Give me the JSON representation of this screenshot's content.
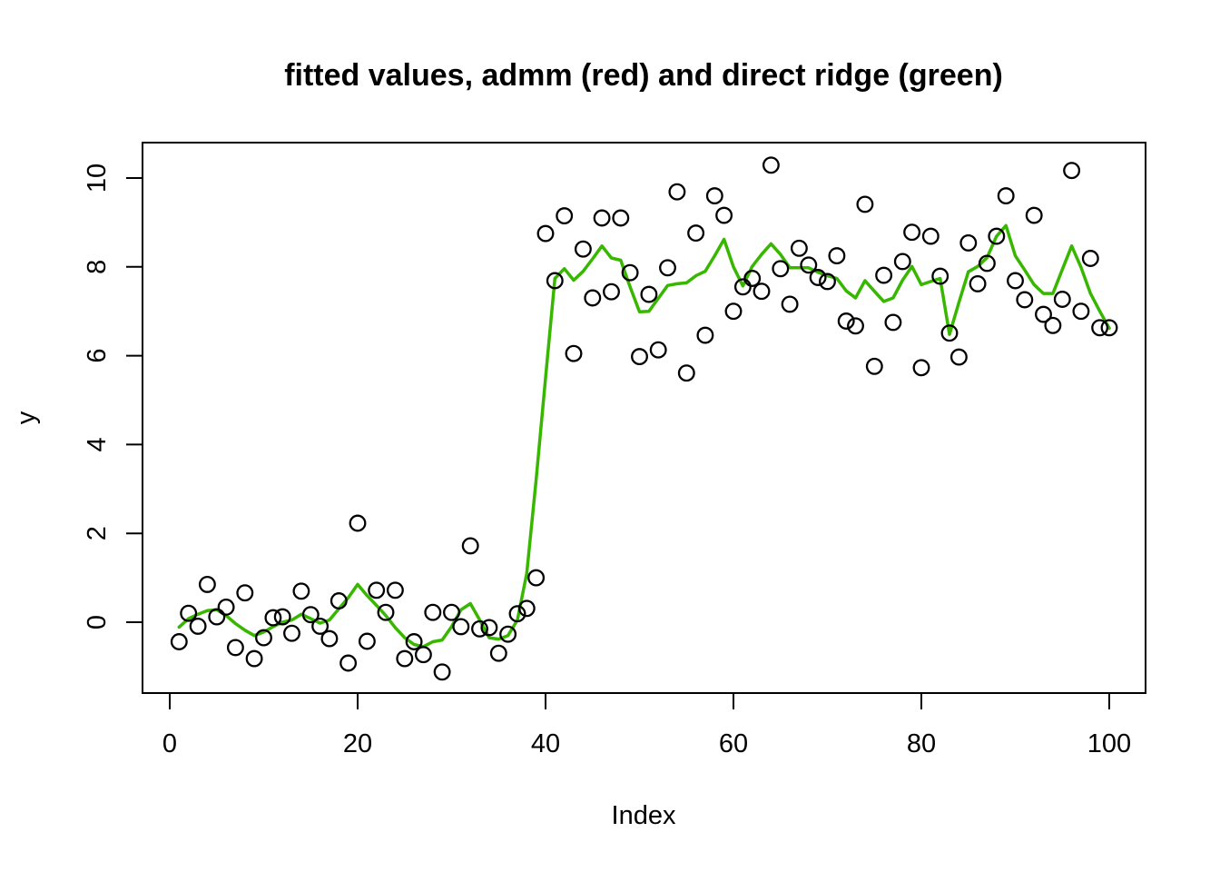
{
  "colors": {
    "background": "#FFFFFF",
    "ridge_line_green": "#38B700",
    "point_stroke": "#000000",
    "axis_black": "#000000"
  },
  "chart_data": {
    "type": "scatter",
    "title": "fitted values, admm (red) and direct ridge (green)",
    "xlabel": "Index",
    "ylabel": "y",
    "xlim": [
      -3,
      104
    ],
    "ylim": [
      -1.6,
      10.8
    ],
    "x_ticks": [
      0,
      20,
      40,
      60,
      80,
      100
    ],
    "y_ticks": [
      0,
      2,
      4,
      6,
      8,
      10
    ],
    "grid": false,
    "legend": "none (series identified by colors in title)",
    "note": "The admm (red) fitted line is not visible in the image; it is completely overplotted by the green direct-ridge fitted line.",
    "x": [
      1,
      2,
      3,
      4,
      5,
      6,
      7,
      8,
      9,
      10,
      11,
      12,
      13,
      14,
      15,
      16,
      17,
      18,
      19,
      20,
      21,
      22,
      23,
      24,
      25,
      26,
      27,
      28,
      29,
      30,
      31,
      32,
      33,
      34,
      35,
      36,
      37,
      38,
      39,
      40,
      41,
      42,
      43,
      44,
      45,
      46,
      47,
      48,
      49,
      50,
      51,
      52,
      53,
      54,
      55,
      56,
      57,
      58,
      59,
      60,
      61,
      62,
      63,
      64,
      65,
      66,
      67,
      68,
      69,
      70,
      71,
      72,
      73,
      74,
      75,
      76,
      77,
      78,
      79,
      80,
      81,
      82,
      83,
      84,
      85,
      86,
      87,
      88,
      89,
      90,
      91,
      92,
      93,
      94,
      95,
      96,
      97,
      98,
      99,
      100
    ],
    "series": [
      {
        "name": "y observations (open circles)",
        "type": "scatter",
        "values": [
          -0.44,
          0.2,
          -0.09,
          0.85,
          0.12,
          0.34,
          -0.57,
          0.66,
          -0.82,
          -0.35,
          0.1,
          0.12,
          -0.25,
          0.7,
          0.17,
          -0.09,
          -0.37,
          0.48,
          -0.92,
          2.23,
          -0.43,
          0.72,
          0.22,
          0.72,
          -0.82,
          -0.44,
          -0.73,
          0.22,
          -1.12,
          0.22,
          -0.1,
          1.72,
          -0.15,
          -0.12,
          -0.7,
          -0.27,
          0.19,
          0.31,
          1.0,
          8.75,
          7.69,
          9.15,
          6.05,
          8.4,
          7.3,
          9.1,
          7.44,
          9.1,
          7.87,
          5.98,
          7.38,
          6.13,
          7.98,
          9.69,
          5.61,
          8.76,
          6.46,
          9.6,
          9.16,
          7.0,
          7.55,
          7.74,
          7.45,
          10.29,
          7.96,
          7.16,
          8.42,
          8.04,
          7.76,
          7.67,
          8.25,
          6.78,
          6.67,
          9.41,
          5.76,
          7.81,
          6.75,
          8.12,
          8.78,
          5.73,
          8.69,
          7.79,
          6.51,
          5.97,
          8.54,
          7.62,
          8.08,
          8.69,
          9.6,
          7.69,
          7.26,
          9.16,
          6.93,
          6.68,
          7.27,
          10.17,
          7.0,
          8.19,
          6.63,
          6.63
        ]
      },
      {
        "name": "direct ridge fitted values (green line, admm red line hidden beneath)",
        "type": "line",
        "color": "#38B700",
        "values": [
          -0.11,
          0.08,
          0.18,
          0.26,
          0.28,
          0.15,
          -0.03,
          -0.18,
          -0.3,
          -0.22,
          -0.1,
          0.0,
          0.05,
          0.18,
          0.08,
          -0.02,
          0.05,
          0.3,
          0.55,
          0.85,
          0.6,
          0.38,
          0.15,
          -0.12,
          -0.35,
          -0.5,
          -0.55,
          -0.44,
          -0.4,
          -0.1,
          0.28,
          0.42,
          0.05,
          -0.35,
          -0.38,
          -0.3,
          0.05,
          1.1,
          3.2,
          5.5,
          7.74,
          7.96,
          7.7,
          7.9,
          8.18,
          8.47,
          8.2,
          8.15,
          7.55,
          6.99,
          7.0,
          7.29,
          7.58,
          7.62,
          7.64,
          7.8,
          7.9,
          8.25,
          8.62,
          8.0,
          7.57,
          8.01,
          8.28,
          8.52,
          8.28,
          7.98,
          7.98,
          7.98,
          7.88,
          7.8,
          7.74,
          7.46,
          7.3,
          7.69,
          7.45,
          7.22,
          7.3,
          7.7,
          8.01,
          7.6,
          7.67,
          7.74,
          6.48,
          7.2,
          7.89,
          8.01,
          8.21,
          8.69,
          8.93,
          8.25,
          7.93,
          7.6,
          7.4,
          7.4,
          7.94,
          8.47,
          7.99,
          7.4,
          7.0,
          6.62
        ]
      }
    ]
  }
}
